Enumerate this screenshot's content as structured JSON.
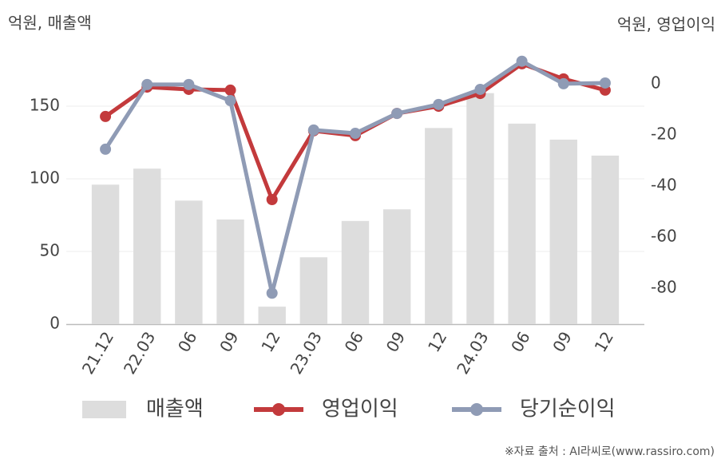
{
  "chart_data": {
    "type": "bar-line",
    "y_axis_label": "억원, 매출액",
    "y2_axis_label": "억원, 영업이익",
    "source": "※자료 출처 : AI라씨로(www.rassiro.com)",
    "categories": [
      "21.12",
      "22.03",
      "06",
      "09",
      "12",
      "23.03",
      "06",
      "09",
      "12",
      "24.03",
      "06",
      "09",
      "12"
    ],
    "series": [
      {
        "name": "매출액",
        "color": "#dddddd",
        "type": "bar",
        "axis": "y",
        "values": [
          96,
          107,
          85,
          72,
          12,
          46,
          71,
          79,
          135,
          159,
          138,
          127,
          116
        ]
      },
      {
        "name": "영업이익",
        "color": "#c33a3c",
        "type": "line",
        "axis": "y2",
        "values": [
          -12.8,
          -1.3,
          -2.2,
          -2.5,
          -45.3,
          -18.4,
          -20.3,
          -11.6,
          -8.8,
          -3.8,
          7.8,
          1.9,
          -2.5
        ]
      },
      {
        "name": "당기순이익",
        "color": "#8f9bb5",
        "type": "line",
        "axis": "y2",
        "values": [
          -25.6,
          -0.3,
          -0.3,
          -6.6,
          -81.9,
          -18.1,
          -19.4,
          -11.6,
          -8.1,
          -2.2,
          8.8,
          0,
          0.3
        ]
      }
    ],
    "ylim": [
      0,
      182
    ],
    "yticks": [
      0,
      50,
      100,
      150
    ],
    "y2lim": [
      -94,
      9.4
    ],
    "y2ticks": [
      0,
      -20,
      -40,
      -60,
      -80
    ],
    "grid": true
  }
}
